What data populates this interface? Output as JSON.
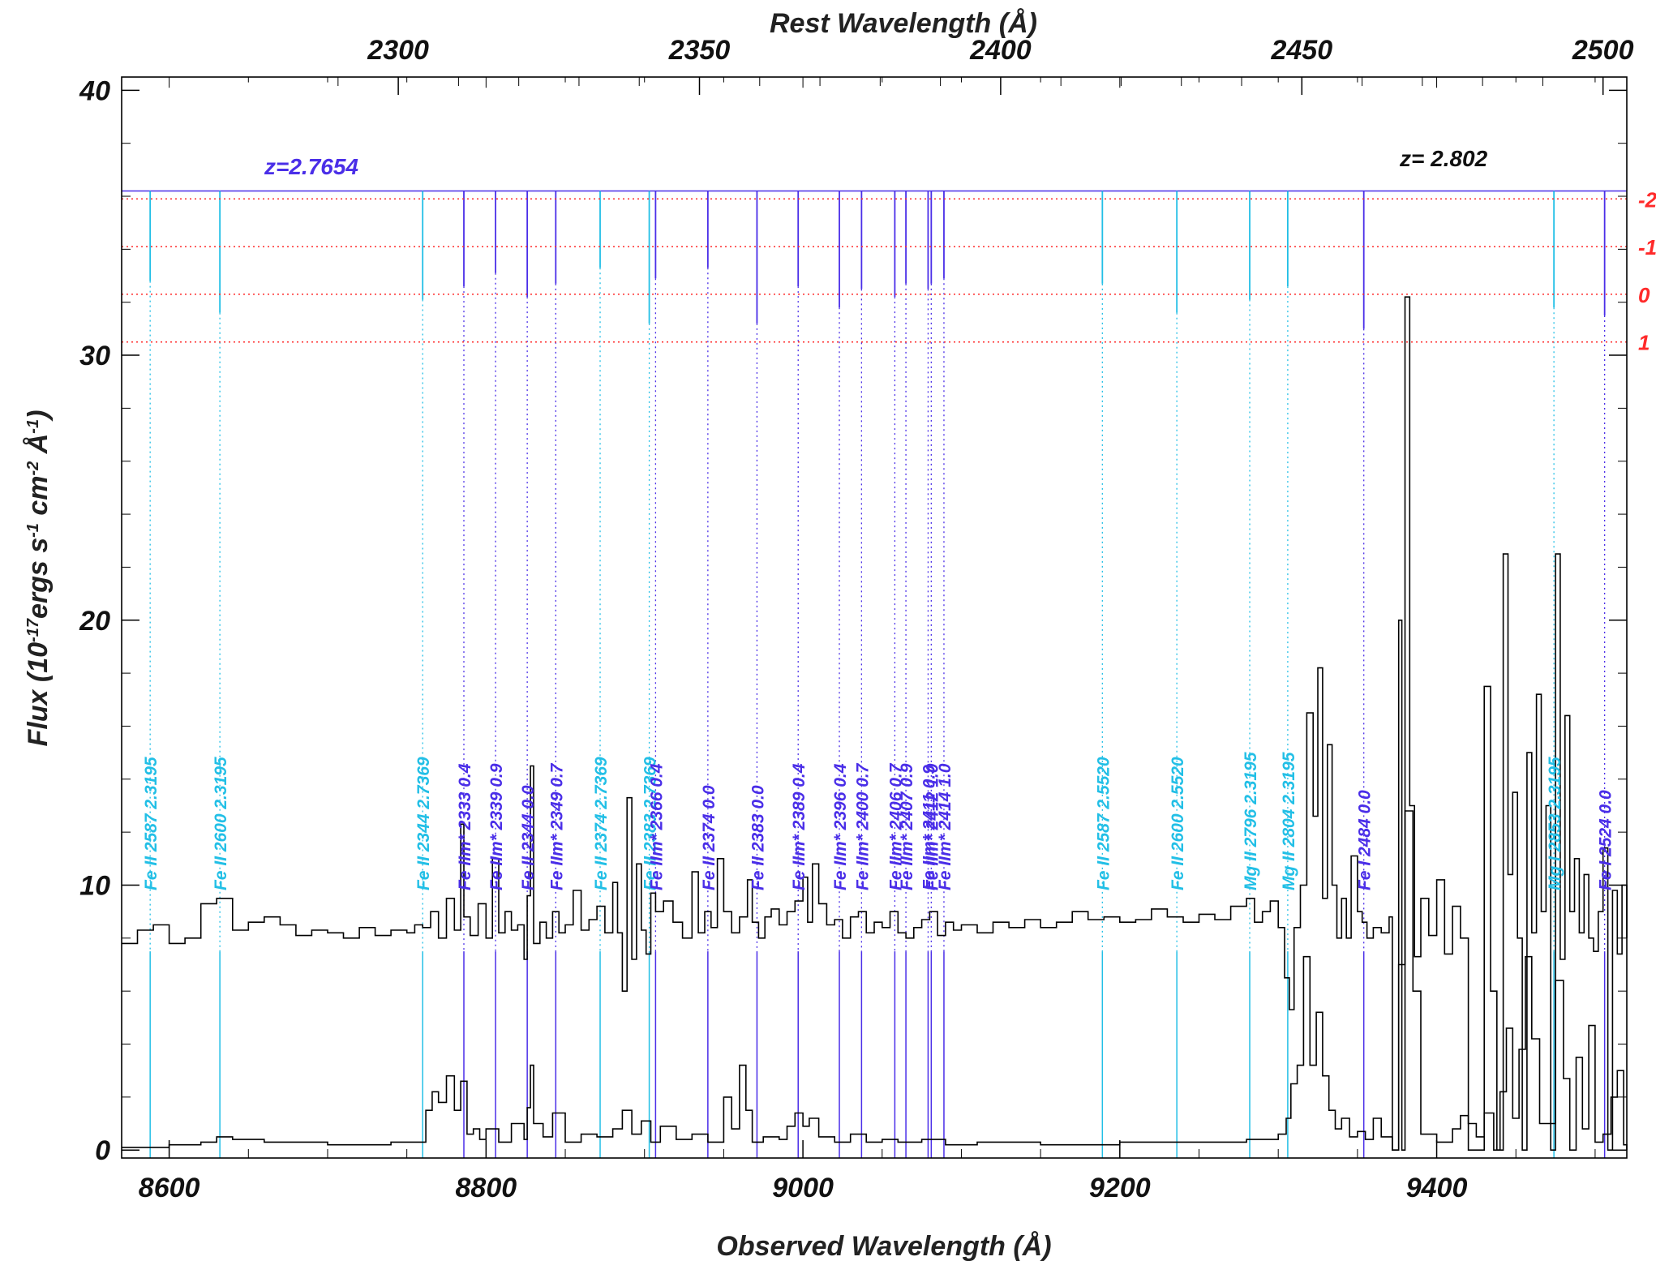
{
  "chart_data": {
    "type": "line",
    "xlabel": "Observed Wavelength (Å)",
    "ylabel_parts": [
      "Flux (10",
      "-17",
      "ergs s",
      "-1",
      " cm",
      "-2",
      " Å",
      "-1",
      ")"
    ],
    "top_xlabel": "Rest Wavelength (Å)",
    "xlim": [
      8570,
      9520
    ],
    "ylim": [
      -0.3,
      40.5
    ],
    "x_ticks": [
      8600,
      8800,
      9000,
      9200,
      9400
    ],
    "y_ticks": [
      0,
      10,
      20,
      30,
      40
    ],
    "top_ticks": [
      2300,
      2350,
      2400,
      2450,
      2500
    ],
    "top_axis_redshift": 2.802,
    "redshift_label_left": "z=2.7654",
    "redshift_label_right": "z= 2.802",
    "velocity_labels": [
      {
        "label": "-2",
        "flux": 35.9
      },
      {
        "label": "-1",
        "flux": 34.1
      },
      {
        "label": "0",
        "flux": 32.3
      },
      {
        "label": "1",
        "flux": 30.5
      }
    ],
    "colors": {
      "cyan": "#22bfe6",
      "blue": "#4a2ee8",
      "red": "#ff2a2a",
      "spectrum": "#000000"
    },
    "marker_top_flux": 36.2,
    "absorption_lines": [
      {
        "label": "Fe II 2587 2.3195",
        "x": 8588,
        "color": "cyan",
        "depth": 32.8
      },
      {
        "label": "Fe II 2600 2.3195",
        "x": 8632,
        "color": "cyan",
        "depth": 31.6
      },
      {
        "label": "Fe II 2344 2.7369",
        "x": 8760,
        "color": "cyan",
        "depth": 32.1
      },
      {
        "label": "Fe IIm* 2333 0.4",
        "x": 8786,
        "color": "blue",
        "depth": 32.6
      },
      {
        "label": "Fe IIm* 2339 0.9",
        "x": 8806,
        "color": "blue",
        "depth": 33.1
      },
      {
        "label": "Fe II 2344 0.0",
        "x": 8826,
        "color": "blue",
        "depth": 32.2
      },
      {
        "label": "Fe IIm* 2349 0.7",
        "x": 8844,
        "color": "blue",
        "depth": 32.7
      },
      {
        "label": "Fe II 2374 2.7369",
        "x": 8872,
        "color": "cyan",
        "depth": 33.3
      },
      {
        "label": "Fe II 2383 2.7369",
        "x": 8903,
        "color": "cyan",
        "depth": 31.2
      },
      {
        "label": "Fe IIm* 2366 0.4",
        "x": 8907,
        "color": "blue",
        "depth": 32.9
      },
      {
        "label": "Fe II 2374 0.0",
        "x": 8940,
        "color": "blue",
        "depth": 33.3
      },
      {
        "label": "Fe II 2383 0.0",
        "x": 8971,
        "color": "blue",
        "depth": 31.2
      },
      {
        "label": "Fe IIm* 2389 0.4",
        "x": 8997,
        "color": "blue",
        "depth": 32.6
      },
      {
        "label": "Fe IIm* 2396 0.4",
        "x": 9023,
        "color": "blue",
        "depth": 31.8
      },
      {
        "label": "Fe IIm* 2400 0.7",
        "x": 9037,
        "color": "blue",
        "depth": 32.5
      },
      {
        "label": "Fe IIm* 2406 0.7",
        "x": 9058,
        "color": "blue",
        "depth": 32.2
      },
      {
        "label": "Fe IIm* 2407 0.9",
        "x": 9065,
        "color": "blue",
        "depth": 32.7
      },
      {
        "label": "Fe IIm* 2411 0.9",
        "x": 9079,
        "color": "blue",
        "depth": 32.5
      },
      {
        "label": "Fe IIm* 2412 1.0",
        "x": 9081,
        "color": "blue",
        "depth": 32.7
      },
      {
        "label": "Fe IIm* 2414 1.0",
        "x": 9089,
        "color": "blue",
        "depth": 32.9
      },
      {
        "label": "Fe II 2587 2.5520",
        "x": 9189,
        "color": "cyan",
        "depth": 32.7
      },
      {
        "label": "Fe II 2600 2.5520",
        "x": 9236,
        "color": "cyan",
        "depth": 31.6
      },
      {
        "label": "Mg II 2796 2.3195",
        "x": 9282,
        "color": "cyan",
        "depth": 32.1
      },
      {
        "label": "Mg II 2804 2.3195",
        "x": 9306,
        "color": "cyan",
        "depth": 32.6
      },
      {
        "label": "Fe I 2484 0.0",
        "x": 9354,
        "color": "blue",
        "depth": 31.0
      },
      {
        "label": "Mg I 2853 2.3195",
        "x": 9474,
        "color": "cyan",
        "depth": 31.8
      },
      {
        "label": "Fe I 2524 0.0",
        "x": 9506,
        "color": "blue",
        "depth": 31.5
      }
    ],
    "series": [
      {
        "name": "flux",
        "x": [
          8570,
          8580,
          8590,
          8600,
          8610,
          8620,
          8630,
          8640,
          8650,
          8660,
          8670,
          8680,
          8690,
          8700,
          8710,
          8720,
          8730,
          8740,
          8750,
          8755,
          8760,
          8765,
          8770,
          8775,
          8780,
          8784,
          8786,
          8790,
          8795,
          8800,
          8804,
          8808,
          8812,
          8816,
          8820,
          8824,
          8826,
          8828,
          8830,
          8834,
          8838,
          8842,
          8846,
          8850,
          8855,
          8860,
          8865,
          8870,
          8875,
          8880,
          8883,
          8886,
          8889,
          8892,
          8895,
          8898,
          8901,
          8904,
          8907,
          8912,
          8918,
          8924,
          8930,
          8934,
          8938,
          8942,
          8946,
          8950,
          8955,
          8960,
          8965,
          8968,
          8972,
          8976,
          8980,
          8985,
          8990,
          8995,
          9000,
          9003,
          9006,
          9010,
          9015,
          9020,
          9025,
          9030,
          9035,
          9040,
          9045,
          9050,
          9055,
          9060,
          9065,
          9070,
          9075,
          9080,
          9085,
          9090,
          9095,
          9100,
          9110,
          9120,
          9130,
          9140,
          9150,
          9160,
          9170,
          9180,
          9190,
          9200,
          9210,
          9220,
          9230,
          9240,
          9250,
          9260,
          9270,
          9280,
          9285,
          9290,
          9295,
          9300,
          9304,
          9307,
          9310,
          9314,
          9318,
          9322,
          9325,
          9328,
          9331,
          9334,
          9337,
          9340,
          9343,
          9346,
          9350,
          9353,
          9356,
          9360,
          9365,
          9370,
          9372,
          9374,
          9376,
          9378,
          9380,
          9383,
          9386,
          9390,
          9395,
          9400,
          9405,
          9410,
          9415,
          9420,
          9425,
          9430,
          9434,
          9438,
          9442,
          9445,
          9448,
          9451,
          9454,
          9457,
          9460,
          9463,
          9466,
          9469,
          9472,
          9475,
          9478,
          9481,
          9484,
          9487,
          9490,
          9493,
          9496,
          9499,
          9502,
          9505,
          9508,
          9511,
          9514,
          9517,
          9520
        ],
        "values": [
          7.8,
          8.3,
          8.5,
          7.8,
          8.0,
          9.3,
          9.5,
          8.3,
          8.6,
          8.8,
          8.5,
          8.1,
          8.3,
          8.2,
          8.0,
          8.4,
          8.1,
          8.3,
          8.2,
          8.5,
          8.4,
          9.0,
          8.0,
          9.5,
          8.3,
          12.3,
          8.8,
          8.1,
          9.3,
          8.0,
          11.0,
          8.2,
          9.0,
          8.3,
          8.5,
          7.2,
          9.6,
          14.5,
          7.8,
          8.6,
          8.0,
          9.0,
          8.2,
          8.5,
          9.8,
          8.3,
          8.7,
          9.2,
          8.2,
          10.1,
          8.2,
          6.0,
          13.3,
          7.2,
          10.8,
          8.3,
          7.4,
          9.7,
          9.0,
          9.4,
          8.6,
          8.0,
          10.5,
          8.2,
          9.0,
          8.4,
          11.0,
          9.0,
          8.2,
          8.8,
          10.2,
          8.6,
          8.0,
          8.8,
          9.1,
          8.5,
          9.0,
          9.4,
          10.3,
          8.6,
          10.8,
          9.3,
          8.5,
          8.7,
          8.0,
          8.8,
          9.0,
          8.2,
          8.6,
          8.4,
          9.0,
          8.2,
          8.0,
          8.4,
          8.7,
          9.0,
          8.1,
          8.6,
          8.3,
          8.5,
          8.2,
          8.6,
          8.4,
          8.7,
          8.4,
          8.6,
          9.0,
          8.7,
          8.8,
          8.6,
          8.7,
          9.1,
          8.8,
          8.6,
          8.9,
          8.7,
          9.2,
          9.5,
          8.6,
          9.0,
          9.4,
          8.4,
          6.5,
          5.3,
          8.4,
          10.0,
          16.5,
          12.6,
          18.2,
          9.5,
          15.3,
          10.0,
          8.0,
          9.5,
          8.0,
          11.1,
          9.0,
          8.6,
          8.0,
          8.4,
          8.2,
          8.8,
          0.0,
          0.0,
          20.0,
          0.0,
          32.2,
          13.0,
          7.3,
          9.5,
          8.1,
          10.2,
          7.4,
          9.2,
          8.0,
          0.0,
          0.0,
          17.5,
          6.0,
          0.0,
          22.5,
          10.4,
          13.5,
          8.0,
          0.0,
          15.0,
          8.2,
          17.2,
          9.0,
          13.0,
          0.0,
          22.5,
          7.2,
          16.4,
          9.0,
          11.0,
          8.2,
          10.4,
          8.0,
          7.5,
          9.0,
          11.4,
          0.0,
          9.8,
          7.4,
          10.0,
          8.0
        ]
      },
      {
        "name": "error",
        "x": [
          8570,
          8600,
          8620,
          8630,
          8640,
          8660,
          8700,
          8740,
          8755,
          8762,
          8766,
          8770,
          8775,
          8780,
          8784,
          8788,
          8792,
          8796,
          8800,
          8808,
          8816,
          8824,
          8826,
          8828,
          8830,
          8836,
          8842,
          8850,
          8860,
          8870,
          8880,
          8886,
          8892,
          8898,
          8904,
          8910,
          8920,
          8930,
          8940,
          8950,
          8955,
          8960,
          8964,
          8968,
          8975,
          8985,
          8990,
          8995,
          9000,
          9004,
          9010,
          9020,
          9030,
          9040,
          9050,
          9060,
          9075,
          9090,
          9110,
          9150,
          9200,
          9250,
          9280,
          9300,
          9305,
          9308,
          9312,
          9316,
          9320,
          9324,
          9328,
          9332,
          9336,
          9340,
          9345,
          9350,
          9355,
          9360,
          9365,
          9372,
          9376,
          9380,
          9385,
          9390,
          9400,
          9410,
          9415,
          9420,
          9425,
          9430,
          9436,
          9440,
          9444,
          9448,
          9452,
          9456,
          9460,
          9465,
          9470,
          9475,
          9480,
          9484,
          9488,
          9492,
          9496,
          9500,
          9505,
          9510,
          9514,
          9518,
          9520
        ],
        "values": [
          0.1,
          0.2,
          0.3,
          0.5,
          0.4,
          0.3,
          0.2,
          0.3,
          0.3,
          1.5,
          2.2,
          1.8,
          2.8,
          1.5,
          2.6,
          0.6,
          0.8,
          0.4,
          0.8,
          0.3,
          1.0,
          0.4,
          1.6,
          3.2,
          1.0,
          0.5,
          1.4,
          0.3,
          0.6,
          0.5,
          0.8,
          1.5,
          0.6,
          1.1,
          0.3,
          0.9,
          0.4,
          0.6,
          0.3,
          2.0,
          0.8,
          3.2,
          1.5,
          0.3,
          0.5,
          0.4,
          0.9,
          1.4,
          0.9,
          1.2,
          0.5,
          0.3,
          0.6,
          0.3,
          0.4,
          0.3,
          0.4,
          0.2,
          0.3,
          0.2,
          0.3,
          0.3,
          0.4,
          0.6,
          1.2,
          2.5,
          3.2,
          7.3,
          3.2,
          5.2,
          2.8,
          1.5,
          0.8,
          1.2,
          0.5,
          0.7,
          0.4,
          1.2,
          0.5,
          0.0,
          7.0,
          12.8,
          6.0,
          0.6,
          0.3,
          0.8,
          1.3,
          1.0,
          0.5,
          1.4,
          0.0,
          2.2,
          4.6,
          1.2,
          3.8,
          7.3,
          4.2,
          1.0,
          1.0,
          6.4,
          2.7,
          0.0,
          3.5,
          0.8,
          4.7,
          0.3,
          0.6,
          2.0,
          3.0,
          0.2,
          0.0
        ]
      }
    ]
  }
}
